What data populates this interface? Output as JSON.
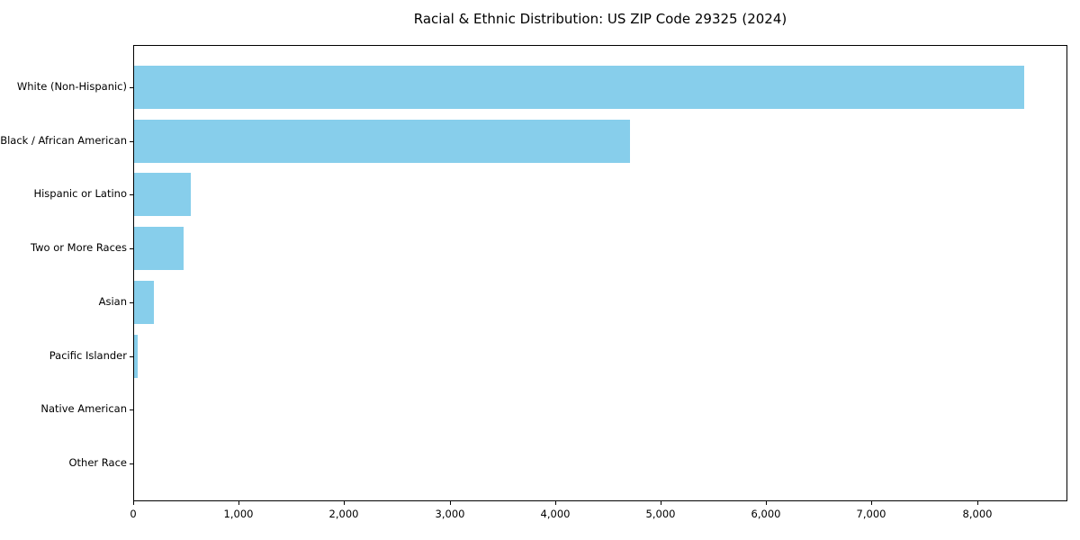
{
  "figure": {
    "background_color": "#ffffff",
    "frame_color": "#000000",
    "text_color": "#000000"
  },
  "chart_data": {
    "type": "bar",
    "orientation": "horizontal",
    "title": "Racial & Ethnic Distribution: US ZIP Code 29325 (2024)",
    "xlabel": "",
    "ylabel": "",
    "categories": [
      "White (Non-Hispanic)",
      "Black / African American",
      "Hispanic or Latino",
      "Two or More Races",
      "Asian",
      "Pacific Islander",
      "Native American",
      "Other Race"
    ],
    "values": [
      8434,
      4700,
      540,
      470,
      190,
      36,
      0,
      0
    ],
    "bar_color": "#87CEEB",
    "xlim": [
      0,
      8856
    ],
    "xticks": [
      0,
      1000,
      2000,
      3000,
      4000,
      5000,
      6000,
      7000,
      8000
    ],
    "xtick_labels": [
      "0",
      "1,000",
      "2,000",
      "3,000",
      "4,000",
      "5,000",
      "6,000",
      "7,000",
      "8,000"
    ],
    "grid": false,
    "legend": null
  }
}
